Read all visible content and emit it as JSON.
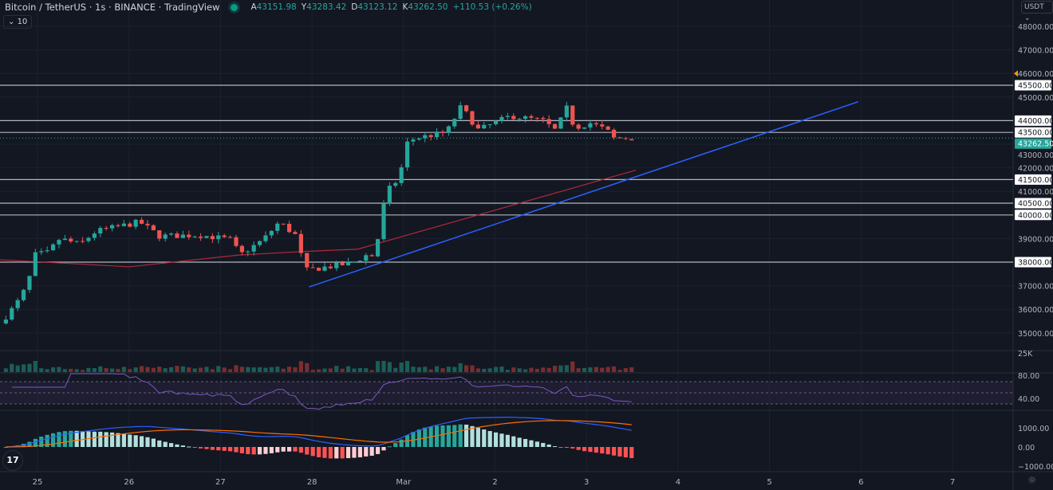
{
  "header": {
    "symbol_title": "Bitcoin / TetherUS · 1s · BINANCE · TradingView",
    "ohlc": [
      {
        "label": "A",
        "value": "43151.98"
      },
      {
        "label": "Y",
        "value": "43283.42"
      },
      {
        "label": "D",
        "value": "43123.12"
      },
      {
        "label": "K",
        "value": "43262.50"
      }
    ],
    "change": "+110.53 (+0.26%)",
    "indicators_collapsed_count": "10"
  },
  "currency_button": "USDT",
  "logo_text": "TV",
  "colors": {
    "up": "#26a69a",
    "down": "#ef5350",
    "background": "#131722",
    "ma": "#b2283a",
    "trendline": "#2962ff",
    "rsi": "#7e57c2",
    "macd": "#2962ff",
    "signal": "#ff6d00",
    "alert": "#ff9800"
  },
  "chart_data": {
    "type": "candlestick",
    "price_axis": {
      "ticks": [
        "48000.00",
        "47000.00",
        "46000.00",
        "45000.00",
        "43000.00",
        "42000.00",
        "41000.00",
        "39000.00",
        "37000.00",
        "36000.00",
        "35000.00"
      ],
      "range": [
        34500,
        48500
      ]
    },
    "time_axis": {
      "ticks": [
        {
          "label": "25",
          "day": 0
        },
        {
          "label": "26",
          "day": 1
        },
        {
          "label": "27",
          "day": 2
        },
        {
          "label": "28",
          "day": 3
        },
        {
          "label": "Mar",
          "day": 4
        },
        {
          "label": "2",
          "day": 5
        },
        {
          "label": "3",
          "day": 6
        },
        {
          "label": "4",
          "day": 7
        },
        {
          "label": "5",
          "day": 8
        },
        {
          "label": "6",
          "day": 9
        },
        {
          "label": "7",
          "day": 10
        }
      ]
    },
    "price_path_day_price": [
      [
        -0.41,
        35400
      ],
      [
        -0.235,
        36200
      ],
      [
        -0.105,
        37050
      ],
      [
        -0.035,
        38300
      ],
      [
        0.113,
        38400
      ],
      [
        0.244,
        39000
      ],
      [
        0.462,
        38750
      ],
      [
        0.636,
        39300
      ],
      [
        1.116,
        39700
      ],
      [
        1.334,
        39100
      ],
      [
        1.77,
        39150
      ],
      [
        2.12,
        38950
      ],
      [
        2.21,
        38300
      ],
      [
        2.467,
        38950
      ],
      [
        2.642,
        39700
      ],
      [
        2.816,
        39150
      ],
      [
        2.93,
        37650
      ],
      [
        3.08,
        37750
      ],
      [
        3.43,
        37950
      ],
      [
        3.6,
        38300
      ],
      [
        3.69,
        38250
      ],
      [
        3.76,
        40050
      ],
      [
        3.82,
        41000
      ],
      [
        3.95,
        41550
      ],
      [
        4.04,
        43050
      ],
      [
        4.12,
        43250
      ],
      [
        4.47,
        43500
      ],
      [
        4.63,
        44600
      ],
      [
        4.82,
        43600
      ],
      [
        5.17,
        44200
      ],
      [
        5.52,
        44000
      ],
      [
        5.69,
        43500
      ],
      [
        5.76,
        44750
      ],
      [
        5.87,
        43700
      ],
      [
        6.04,
        43900
      ],
      [
        6.22,
        43600
      ],
      [
        6.3,
        43250
      ],
      [
        6.54,
        43262.5
      ]
    ],
    "horizontal_levels": [
      {
        "price": 45500,
        "label": "45500.00"
      },
      {
        "price": 44000,
        "label": "44000.00"
      },
      {
        "price": 43500,
        "label": "43500.00"
      },
      {
        "price": 41500,
        "label": "41500.00"
      },
      {
        "price": 40500,
        "label": "40500.00"
      },
      {
        "price": 40000,
        "label": "40000.00"
      },
      {
        "price": 38000,
        "label": "38000.00"
      }
    ],
    "current_price": {
      "price": 43262.5,
      "label": "43262.50"
    },
    "alert_price": 46000,
    "trendline": {
      "start": [
        2.97,
        36950
      ],
      "end": [
        8.97,
        44800
      ]
    },
    "moving_average_path": [
      [
        -0.41,
        38100
      ],
      [
        0.55,
        37900
      ],
      [
        1.0,
        37800
      ],
      [
        2.2,
        38300
      ],
      [
        2.9,
        38450
      ],
      [
        3.5,
        38550
      ],
      [
        6.54,
        41900
      ]
    ],
    "volume": {
      "axis_label": "25K"
    },
    "rsi": {
      "ticks": [
        "80.00",
        "40.00"
      ],
      "upper": 70,
      "middle": 50,
      "lower": 30
    },
    "macd": {
      "ticks": [
        "1000.00",
        "0.00",
        "−1000.00"
      ]
    }
  }
}
